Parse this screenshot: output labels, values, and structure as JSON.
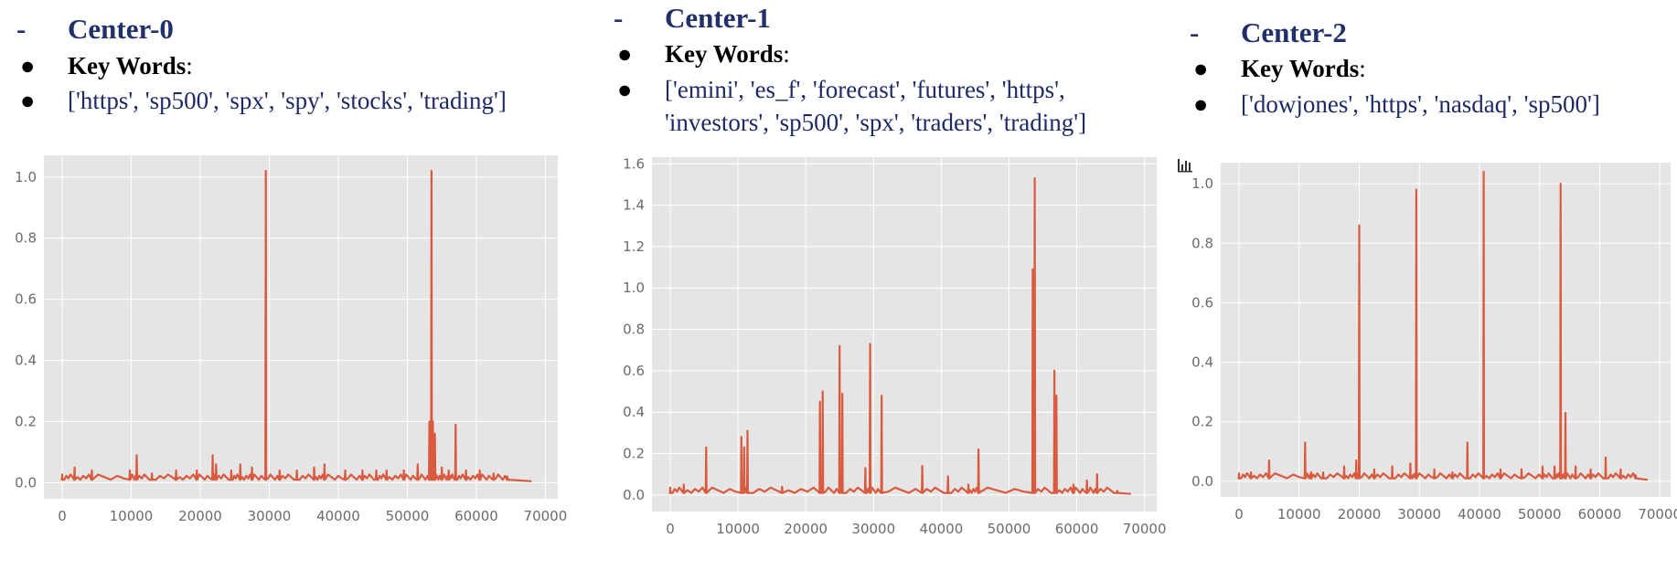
{
  "panels": [
    {
      "heading": "Center-0",
      "dash": "-",
      "bullet": "●",
      "kw_label": "Key Words",
      "kw_colon": ":",
      "kw_line1": "['https', 'sp500', 'spx', 'spy', 'stocks', 'trading']",
      "kw_line2": ""
    },
    {
      "heading": "Center-1",
      "dash": "-",
      "bullet": "●",
      "kw_label": "Key Words",
      "kw_colon": ":",
      "kw_line1": "['emini', 'es_f', 'forecast', 'futures', 'https',",
      "kw_line2": "'investors', 'sp500', 'spx', 'traders', 'trading']"
    },
    {
      "heading": "Center-2",
      "dash": "-",
      "bullet": "●",
      "kw_label": "Key Words",
      "kw_colon": ":",
      "kw_line1": "['dowjones', 'https', 'nasdaq', 'sp500']",
      "kw_line2": ""
    }
  ],
  "toolbar_icon": "bar-chart-icon",
  "colors": {
    "line": "#d95a3e",
    "plot_bg": "#e5e5e5",
    "grid": "#ffffff",
    "tick": "#6b6b6b",
    "heading": "#22306a",
    "keywords": "#1e2a66"
  },
  "chart_data": [
    {
      "type": "line",
      "title": "",
      "xlabel": "",
      "ylabel": "",
      "xlim": [
        0,
        70000
      ],
      "ylim": [
        0,
        1.05
      ],
      "xticks": [
        0,
        10000,
        20000,
        30000,
        40000,
        50000,
        60000,
        70000
      ],
      "yticks": [
        0.0,
        0.2,
        0.4,
        0.6,
        0.8,
        1.0
      ],
      "xtick_labels": [
        "0",
        "10000",
        "20000",
        "30000",
        "40000",
        "50000",
        "60000",
        "70000"
      ],
      "ytick_labels": [
        "0.0",
        "0.2",
        "0.4",
        "0.6",
        "0.8",
        "1.0"
      ],
      "grid": true,
      "baseline": 0.01,
      "x_end": 68000,
      "spikes": [
        [
          0,
          0.02
        ],
        [
          1800,
          0.05
        ],
        [
          4300,
          0.04
        ],
        [
          9800,
          0.04
        ],
        [
          10800,
          0.09
        ],
        [
          13000,
          0.03
        ],
        [
          16500,
          0.04
        ],
        [
          19500,
          0.04
        ],
        [
          21800,
          0.09
        ],
        [
          22300,
          0.06
        ],
        [
          24500,
          0.04
        ],
        [
          25800,
          0.06
        ],
        [
          27500,
          0.05
        ],
        [
          29500,
          1.02
        ],
        [
          31500,
          0.04
        ],
        [
          34000,
          0.04
        ],
        [
          36500,
          0.05
        ],
        [
          38000,
          0.06
        ],
        [
          41000,
          0.04
        ],
        [
          43500,
          0.04
        ],
        [
          45500,
          0.04
        ],
        [
          47000,
          0.04
        ],
        [
          49500,
          0.04
        ],
        [
          51500,
          0.06
        ],
        [
          53200,
          0.2
        ],
        [
          53500,
          1.02
        ],
        [
          53700,
          0.2
        ],
        [
          54000,
          0.16
        ],
        [
          55000,
          0.05
        ],
        [
          56000,
          0.04
        ],
        [
          57000,
          0.19
        ],
        [
          58500,
          0.04
        ],
        [
          60500,
          0.04
        ],
        [
          62500,
          0.03
        ],
        [
          64500,
          0.02
        ]
      ]
    },
    {
      "type": "line",
      "title": "",
      "xlabel": "",
      "ylabel": "",
      "xlim": [
        0,
        70000
      ],
      "ylim": [
        0,
        1.6
      ],
      "xticks": [
        0,
        10000,
        20000,
        30000,
        40000,
        50000,
        60000,
        70000
      ],
      "yticks": [
        0.0,
        0.2,
        0.4,
        0.6,
        0.8,
        1.0,
        1.2,
        1.4,
        1.6
      ],
      "xtick_labels": [
        "0",
        "10000",
        "20000",
        "30000",
        "40000",
        "50000",
        "60000",
        "70000"
      ],
      "ytick_labels": [
        "0.0",
        "0.2",
        "0.4",
        "0.6",
        "0.8",
        "1.0",
        "1.2",
        "1.4",
        "1.6"
      ],
      "grid": true,
      "baseline": 0.01,
      "x_end": 68000,
      "spikes": [
        [
          0,
          0.03
        ],
        [
          2000,
          0.05
        ],
        [
          5300,
          0.23
        ],
        [
          10500,
          0.28
        ],
        [
          10900,
          0.23
        ],
        [
          11400,
          0.31
        ],
        [
          16500,
          0.04
        ],
        [
          22100,
          0.45
        ],
        [
          22500,
          0.5
        ],
        [
          25000,
          0.72
        ],
        [
          25400,
          0.49
        ],
        [
          28800,
          0.13
        ],
        [
          29500,
          0.73
        ],
        [
          31200,
          0.48
        ],
        [
          37200,
          0.14
        ],
        [
          41000,
          0.09
        ],
        [
          44000,
          0.05
        ],
        [
          45500,
          0.22
        ],
        [
          53500,
          1.09
        ],
        [
          53800,
          1.53
        ],
        [
          56700,
          0.6
        ],
        [
          57000,
          0.48
        ],
        [
          59500,
          0.05
        ],
        [
          61500,
          0.07
        ],
        [
          63000,
          0.1
        ],
        [
          66000,
          0.02
        ]
      ]
    },
    {
      "type": "line",
      "title": "",
      "xlabel": "",
      "ylabel": "",
      "xlim": [
        0,
        70000
      ],
      "ylim": [
        0,
        1.05
      ],
      "xticks": [
        0,
        10000,
        20000,
        30000,
        40000,
        50000,
        60000,
        70000
      ],
      "yticks": [
        0.0,
        0.2,
        0.4,
        0.6,
        0.8,
        1.0
      ],
      "xtick_labels": [
        "0",
        "10000",
        "20000",
        "30000",
        "40000",
        "50000",
        "60000",
        "70000"
      ],
      "ytick_labels": [
        "0.0",
        "0.2",
        "0.4",
        "0.6",
        "0.8",
        "1.0"
      ],
      "grid": true,
      "baseline": 0.01,
      "x_end": 68000,
      "spikes": [
        [
          0,
          0.02
        ],
        [
          2000,
          0.03
        ],
        [
          5000,
          0.07
        ],
        [
          11000,
          0.13
        ],
        [
          12000,
          0.03
        ],
        [
          14000,
          0.03
        ],
        [
          17500,
          0.05
        ],
        [
          19500,
          0.07
        ],
        [
          20000,
          0.86
        ],
        [
          22500,
          0.04
        ],
        [
          25500,
          0.05
        ],
        [
          28500,
          0.06
        ],
        [
          29500,
          0.98
        ],
        [
          32500,
          0.04
        ],
        [
          35500,
          0.03
        ],
        [
          38000,
          0.13
        ],
        [
          40700,
          1.04
        ],
        [
          43500,
          0.04
        ],
        [
          47000,
          0.04
        ],
        [
          50500,
          0.05
        ],
        [
          52500,
          0.05
        ],
        [
          53500,
          1.0
        ],
        [
          54300,
          0.23
        ],
        [
          56000,
          0.05
        ],
        [
          58500,
          0.04
        ],
        [
          61000,
          0.08
        ],
        [
          63500,
          0.04
        ],
        [
          66000,
          0.02
        ]
      ]
    }
  ]
}
